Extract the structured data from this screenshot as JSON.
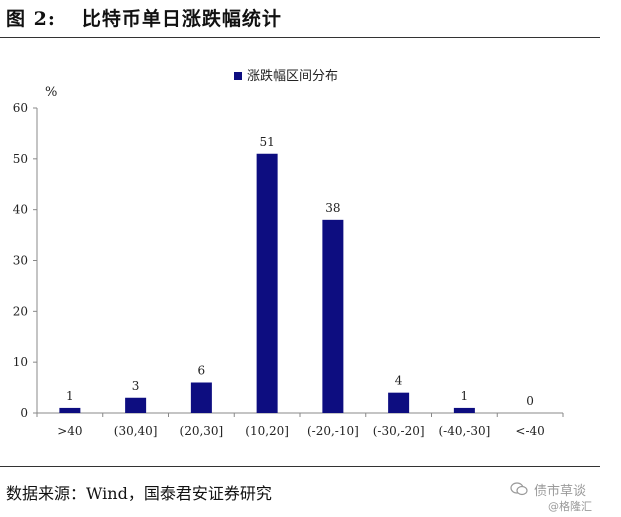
{
  "figure": {
    "number": "图  2:",
    "title": "比特币单日涨跌幅统计"
  },
  "chart_data": {
    "type": "bar",
    "unit": "%",
    "legend": {
      "label": "涨跌幅区间分布",
      "position": "top-center"
    },
    "categories": [
      ">40",
      "(30,40]",
      "(20,30]",
      "(10,20]",
      "(-20,-10]",
      "(-30,-20]",
      "(-40,-30]",
      "<-40"
    ],
    "values": [
      1,
      3,
      6,
      51,
      38,
      4,
      1,
      0
    ],
    "ylim": [
      0,
      60
    ],
    "yticks": [
      0,
      10,
      20,
      30,
      40,
      50,
      60
    ],
    "grid": false,
    "bar_color": "#0d0d80"
  },
  "source": "数据来源：Wind，国泰君安证券研究",
  "watermark": {
    "line1": "债市草谈",
    "line2": "@格隆汇",
    "icon": "wechat-icon"
  }
}
